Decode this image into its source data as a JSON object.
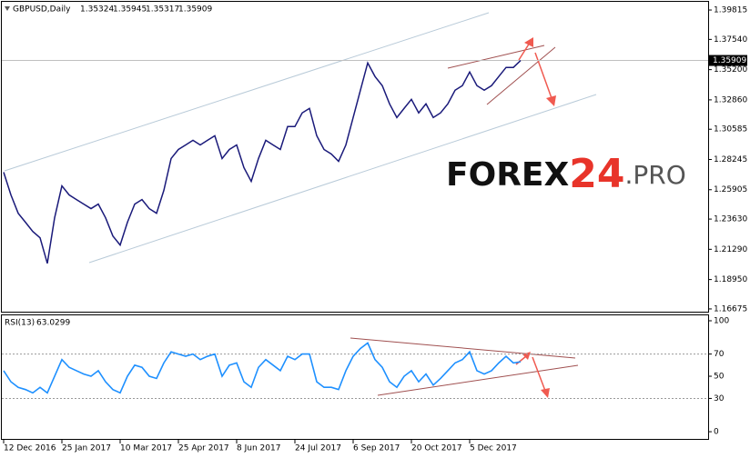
{
  "chart_data": [
    {
      "type": "line",
      "symbol": "GBPUSD,Daily",
      "ohlc": [
        1.35324,
        1.35945,
        1.35317,
        1.35909
      ],
      "categories": [
        "12 Dec 2016",
        null,
        null,
        null,
        null,
        null,
        null,
        null,
        "25 Jan 2017",
        null,
        null,
        null,
        null,
        null,
        null,
        null,
        "10 Mar 2017",
        null,
        null,
        null,
        null,
        null,
        null,
        null,
        "25 Apr 2017",
        null,
        null,
        null,
        null,
        null,
        null,
        null,
        "8 Jun 2017",
        null,
        null,
        null,
        null,
        null,
        null,
        null,
        "24 Jul 2017",
        null,
        null,
        null,
        null,
        null,
        null,
        null,
        "6 Sep 2017",
        null,
        null,
        null,
        null,
        null,
        null,
        null,
        "20 Oct 2017",
        null,
        null,
        null,
        null,
        null,
        null,
        null,
        "5 Dec 2017",
        null,
        null,
        null,
        null,
        null,
        null,
        null
      ],
      "series": [
        {
          "name": "GBPUSD",
          "color": "#1a1a7a",
          "values": [
            1.2726,
            1.255,
            1.2408,
            1.2338,
            1.2267,
            1.2218,
            1.202,
            1.2373,
            1.262,
            1.255,
            1.2514,
            1.2479,
            1.2444,
            1.2479,
            1.2373,
            1.2232,
            1.2162,
            1.2338,
            1.2479,
            1.2514,
            1.2444,
            1.2408,
            1.2585,
            1.2832,
            1.2902,
            1.2937,
            1.2973,
            1.2937,
            1.2973,
            1.3008,
            1.2832,
            1.2902,
            1.2937,
            1.2761,
            1.2655,
            1.2832,
            1.2973,
            1.2937,
            1.2902,
            1.3079,
            1.3079,
            1.3185,
            1.322,
            1.3008,
            1.2902,
            1.2867,
            1.281,
            1.2937,
            1.3149,
            1.3361,
            1.3572,
            1.3467,
            1.3396,
            1.3255,
            1.3149,
            1.322,
            1.329,
            1.3185,
            1.3255,
            1.3149,
            1.3185,
            1.3255,
            1.3361,
            1.3396,
            1.3502,
            1.3396,
            1.3361,
            1.3396,
            1.3467,
            1.3537,
            1.3537,
            1.35909
          ]
        }
      ],
      "ylim": [
        1.1646,
        1.4045
      ],
      "yticks": [
        1.39815,
        {
          "value": 1.3754,
          "label": "1.37540"
        },
        {
          "value": 1.352,
          "label": "1.35200"
        },
        {
          "value": 1.3286,
          "label": "1.32860"
        },
        1.30585,
        1.28245,
        1.25905,
        {
          "value": 1.2363,
          "label": "1.23630"
        },
        {
          "value": 1.2129,
          "label": "1.21290"
        },
        {
          "value": 1.1895,
          "label": "1.18950"
        },
        1.16675
      ],
      "logo": [
        "FOREX",
        "24",
        ".PRO"
      ]
    },
    {
      "type": "line",
      "indicator": "RSI(13)",
      "current": 63.0299,
      "series": [
        {
          "name": "RSI(13)",
          "color": "#1e90ff",
          "values": [
            55,
            45,
            40,
            38,
            35,
            40,
            35,
            50,
            65,
            58,
            55,
            52,
            50,
            55,
            45,
            38,
            35,
            50,
            60,
            58,
            50,
            48,
            62,
            72,
            70,
            68,
            70,
            65,
            68,
            70,
            50,
            60,
            62,
            45,
            40,
            58,
            65,
            60,
            55,
            68,
            65,
            70,
            70,
            45,
            40,
            40,
            38,
            55,
            68,
            75,
            80,
            65,
            58,
            45,
            40,
            50,
            55,
            45,
            52,
            42,
            48,
            55,
            62,
            65,
            72,
            55,
            52,
            55,
            62,
            68,
            62,
            63.0299
          ]
        }
      ],
      "ylim": [
        -6.5,
        104.9
      ],
      "yticks": [
        100,
        70,
        50,
        30,
        0
      ],
      "levels": [
        70,
        30
      ]
    }
  ]
}
